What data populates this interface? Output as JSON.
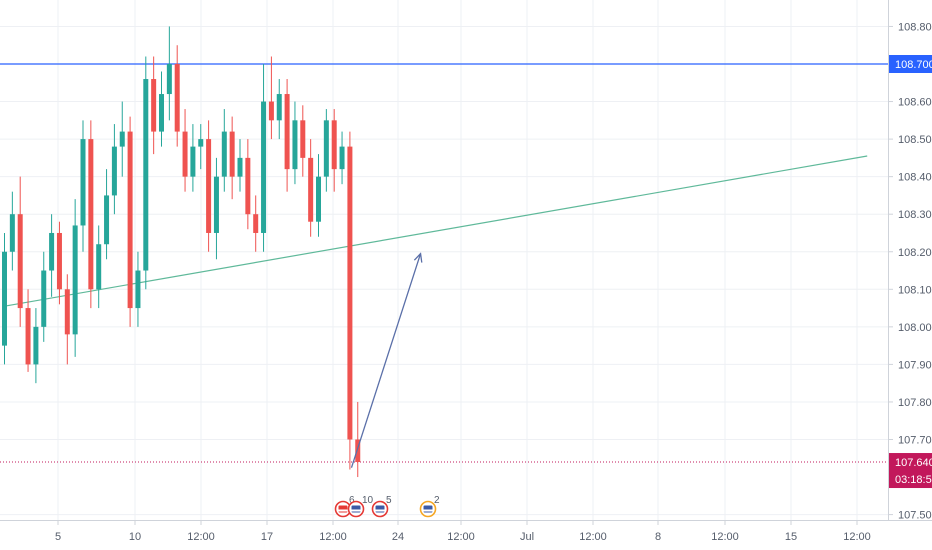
{
  "chart_data": {
    "type": "candlestick",
    "y_axis": {
      "range": [
        107.47,
        108.89
      ],
      "ticks": [
        "108.800",
        "108.700",
        "108.600",
        "108.500",
        "108.400",
        "108.300",
        "108.200",
        "108.100",
        "108.000",
        "107.900",
        "107.800",
        "107.700",
        "107.500"
      ]
    },
    "x_axis": {
      "ticks": [
        "5",
        "10",
        "12:00",
        "17",
        "12:00",
        "24",
        "12:00",
        "Jul",
        "12:00",
        "8",
        "12:00",
        "15",
        "12:00"
      ]
    },
    "price_labels": {
      "resistance": "108.700",
      "current": "107.640",
      "countdown": "03:18:53"
    },
    "colors": {
      "bull": "#26a69a",
      "bear": "#ef5350",
      "resistance_line": "#2962ff",
      "trend_line": "#5fb99a",
      "arrow": "#5a6fa8",
      "current_price": "#c2185b",
      "grid": "#eef0f4"
    },
    "levels": {
      "resistance": 108.7,
      "current": 107.64
    },
    "trend_line": [
      {
        "index": 0,
        "price": 108.055
      },
      {
        "index": 109.9,
        "price": 108.455
      }
    ],
    "arrow": [
      {
        "index": 44.2,
        "price": 107.625
      },
      {
        "index": 53.0,
        "price": 108.195
      }
    ],
    "events": [
      {
        "count": "6"
      },
      {
        "count": "10"
      },
      {
        "count": "5"
      },
      {
        "count": "2"
      }
    ],
    "candles": [
      [
        107.95,
        108.2,
        107.9,
        108.25
      ],
      [
        108.2,
        108.3,
        108.15,
        108.36
      ],
      [
        108.3,
        108.05,
        108.0,
        108.4
      ],
      [
        108.05,
        107.9,
        107.88,
        108.1
      ],
      [
        107.9,
        108.0,
        107.85,
        108.05
      ],
      [
        108.0,
        108.15,
        107.96,
        108.2
      ],
      [
        108.15,
        108.25,
        108.08,
        108.3
      ],
      [
        108.25,
        108.1,
        108.06,
        108.28
      ],
      [
        108.1,
        107.98,
        107.9,
        108.14
      ],
      [
        107.98,
        108.27,
        107.92,
        108.34
      ],
      [
        108.27,
        108.5,
        108.2,
        108.55
      ],
      [
        108.5,
        108.1,
        108.05,
        108.55
      ],
      [
        108.1,
        108.22,
        108.05,
        108.27
      ],
      [
        108.22,
        108.35,
        108.18,
        108.42
      ],
      [
        108.35,
        108.48,
        108.3,
        108.54
      ],
      [
        108.48,
        108.52,
        108.4,
        108.6
      ],
      [
        108.52,
        108.05,
        108.0,
        108.56
      ],
      [
        108.05,
        108.15,
        108.0,
        108.2
      ],
      [
        108.15,
        108.66,
        108.1,
        108.72
      ],
      [
        108.66,
        108.52,
        108.46,
        108.72
      ],
      [
        108.52,
        108.62,
        108.48,
        108.68
      ],
      [
        108.62,
        108.7,
        108.55,
        108.8
      ],
      [
        108.7,
        108.52,
        108.48,
        108.75
      ],
      [
        108.52,
        108.4,
        108.36,
        108.58
      ],
      [
        108.4,
        108.48,
        108.36,
        108.54
      ],
      [
        108.48,
        108.5,
        108.42,
        108.54
      ],
      [
        108.5,
        108.25,
        108.2,
        108.55
      ],
      [
        108.25,
        108.4,
        108.18,
        108.45
      ],
      [
        108.4,
        108.52,
        108.36,
        108.58
      ],
      [
        108.52,
        108.4,
        108.34,
        108.56
      ],
      [
        108.4,
        108.45,
        108.36,
        108.5
      ],
      [
        108.45,
        108.3,
        108.26,
        108.5
      ],
      [
        108.3,
        108.25,
        108.2,
        108.35
      ],
      [
        108.25,
        108.6,
        108.2,
        108.7
      ],
      [
        108.6,
        108.55,
        108.5,
        108.72
      ],
      [
        108.55,
        108.62,
        108.5,
        108.66
      ],
      [
        108.62,
        108.42,
        108.36,
        108.66
      ],
      [
        108.42,
        108.55,
        108.38,
        108.6
      ],
      [
        108.55,
        108.45,
        108.4,
        108.59
      ],
      [
        108.45,
        108.28,
        108.24,
        108.5
      ],
      [
        108.28,
        108.4,
        108.24,
        108.46
      ],
      [
        108.4,
        108.55,
        108.36,
        108.58
      ],
      [
        108.55,
        108.42,
        108.36,
        108.58
      ],
      [
        108.42,
        108.48,
        108.38,
        108.52
      ],
      [
        108.48,
        107.7,
        107.62,
        108.52
      ],
      [
        107.7,
        107.64,
        107.6,
        107.8
      ]
    ]
  }
}
